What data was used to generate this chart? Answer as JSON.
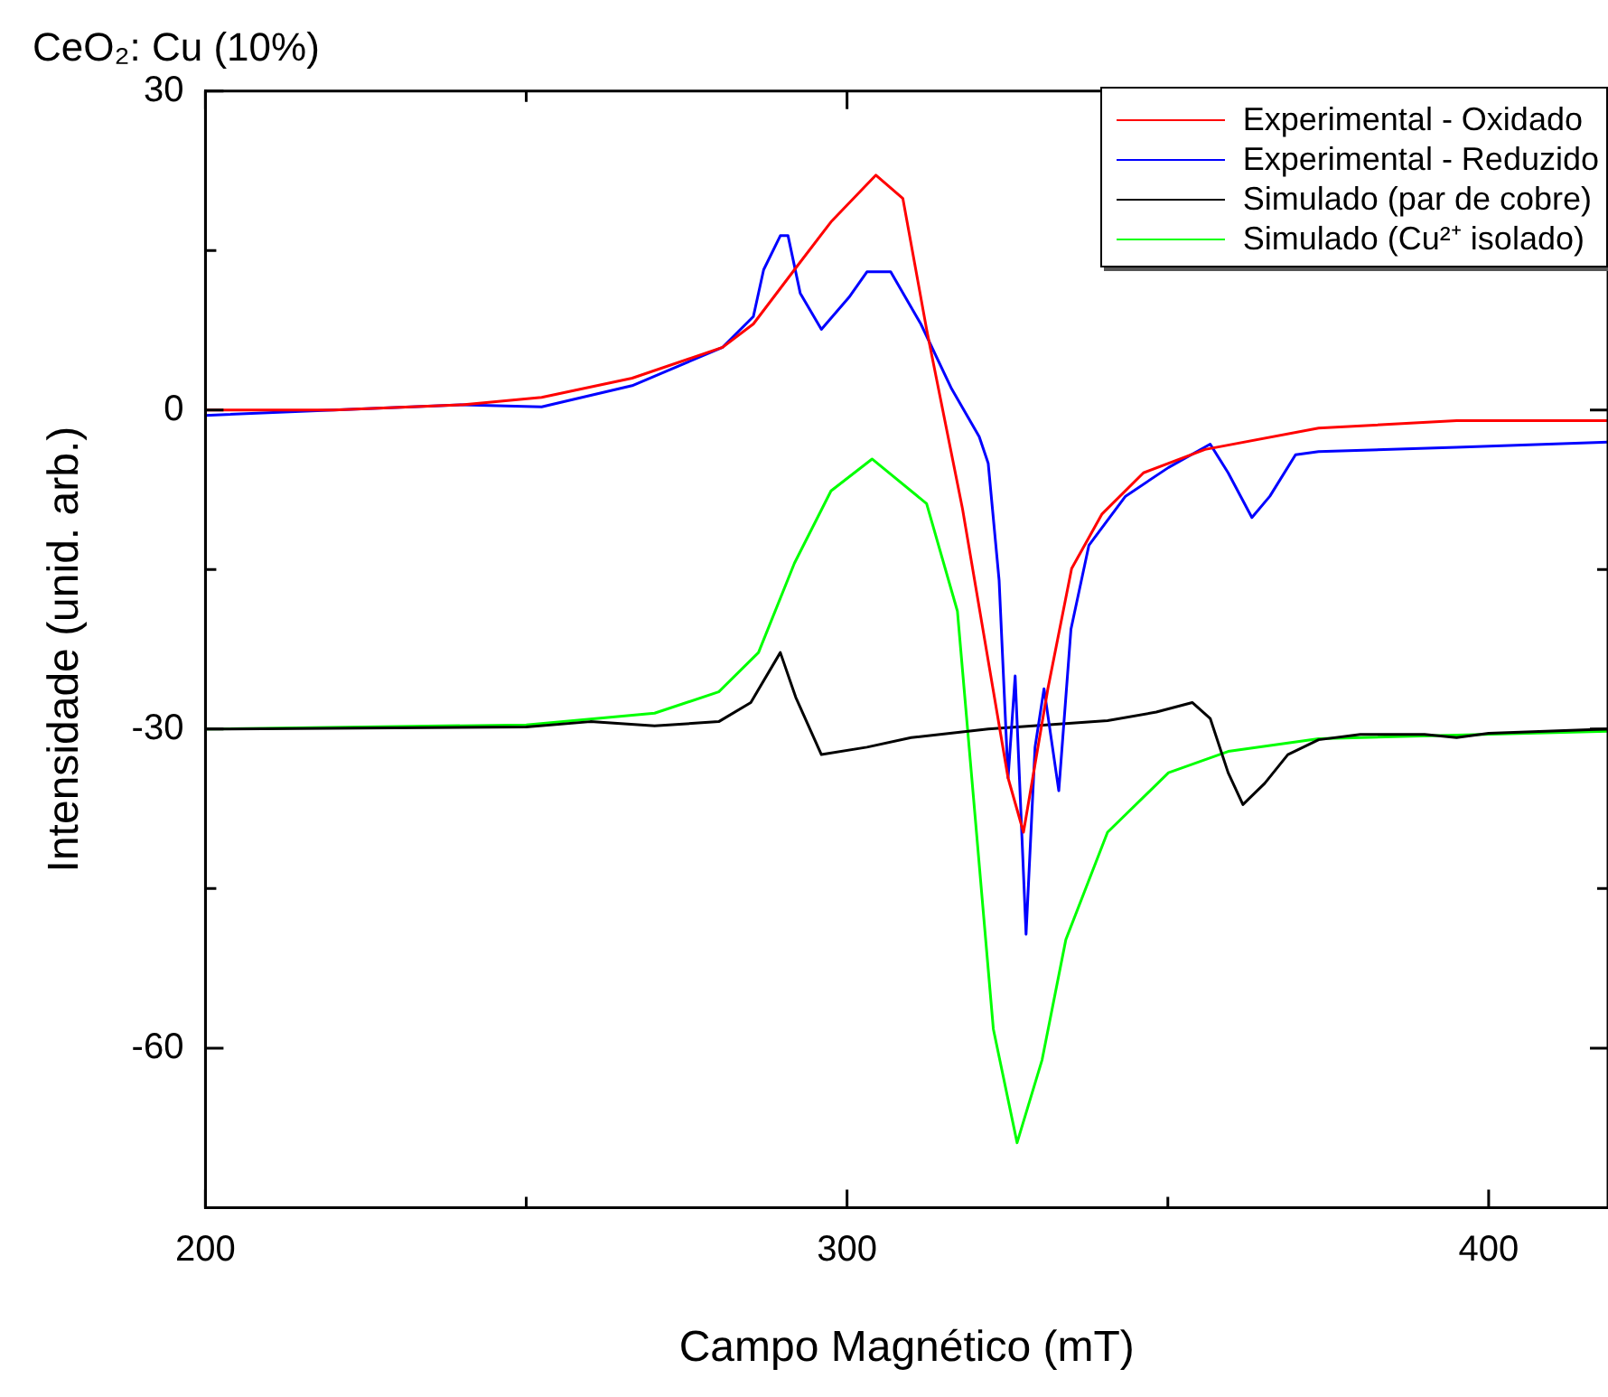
{
  "chart_data": {
    "type": "line",
    "title": "CeO₂: Cu (10%)",
    "xlabel": "Campo Magnético (mT)",
    "ylabel": "Intensidade (unid. arb.)",
    "xlim": [
      200,
      418.6
    ],
    "ylim": [
      -75,
      30
    ],
    "xticks": [
      200,
      {
        "value": 250,
        "label": null
      },
      300,
      {
        "value": 350,
        "label": null
      },
      400
    ],
    "yticks": [
      30,
      {
        "value": 15,
        "label": null
      },
      0,
      {
        "value": -15,
        "label": null
      },
      -30,
      {
        "value": -45,
        "label": null
      },
      -60
    ],
    "grid": false,
    "legend": "top right",
    "marker": "none",
    "line_style": "solid",
    "series": [
      {
        "name": "Experimental - Oxidado",
        "color": "#ff0000",
        "x": [
          200,
          220,
          240,
          252.4,
          266.5,
          280.6,
          285.4,
          291.8,
          297.5,
          304.5,
          308.7,
          312.4,
          318,
          325.1,
          327.5,
          331.3,
          335,
          339.7,
          346.2,
          355.8,
          373.5,
          395,
          418.6
        ],
        "values": [
          0,
          0,
          0.5,
          1.2,
          3,
          5.9,
          8.1,
          13.2,
          17.7,
          22.1,
          19.9,
          7.6,
          -9.3,
          -34.6,
          -39.7,
          -26.2,
          -14.9,
          -9.8,
          -5.9,
          -3.7,
          -1.7,
          -1,
          -1
        ]
      },
      {
        "name": "Experimental - Reduzido",
        "color": "#0000ff",
        "x": [
          200,
          220,
          240,
          252.4,
          266.5,
          280.6,
          285.4,
          287,
          289.6,
          290.8,
          292.7,
          296,
          300.3,
          303.1,
          306.8,
          311.5,
          316.3,
          320.6,
          322,
          323.7,
          325.1,
          326.2,
          327.9,
          329.3,
          330.7,
          333,
          334.9,
          337.7,
          343.4,
          350.1,
          356.6,
          359.4,
          363.1,
          365.9,
          369.9,
          373.5,
          395,
          418.6
        ],
        "values": [
          -0.5,
          0,
          0.5,
          0.3,
          2.3,
          5.9,
          8.8,
          13.2,
          16.4,
          16.4,
          11,
          7.6,
          10.6,
          13,
          13,
          8.1,
          2,
          -2.5,
          -5,
          -16,
          -34.6,
          -25,
          -49.3,
          -31.7,
          -26.2,
          -35.8,
          -20.6,
          -12.7,
          -8.1,
          -5.4,
          -3.2,
          -5.9,
          -10.1,
          -8.1,
          -4.2,
          -3.9,
          -3.5,
          -3
        ]
      },
      {
        "name": "Simulado (par de cobre)",
        "color": "#000000",
        "x": [
          200,
          250,
          260,
          270,
          280,
          285,
          289.6,
          292,
          296,
          303.1,
          310,
          322,
          340.6,
          348.2,
          353.8,
          356.6,
          359.4,
          361.7,
          365.1,
          368.7,
          373.5,
          380,
          390,
          395,
          400,
          418.6
        ],
        "values": [
          -30,
          -29.8,
          -29.3,
          -29.7,
          -29.3,
          -27.5,
          -22.8,
          -27,
          -32.4,
          -31.7,
          -30.8,
          -30,
          -29.2,
          -28.4,
          -27.5,
          -29,
          -34.1,
          -37.1,
          -35.1,
          -32.4,
          -31,
          -30.5,
          -30.5,
          -30.8,
          -30.4,
          -30
        ]
      },
      {
        "name": "Simulado (Cu²⁺ isolado)",
        "color": "#00ff00",
        "x": [
          200,
          250,
          270,
          280,
          286.2,
          291.8,
          297.5,
          303.9,
          312.4,
          317.2,
          320,
          322.8,
          326.5,
          330.4,
          334.1,
          340.6,
          350.1,
          359.4,
          373.5,
          418.6
        ],
        "values": [
          -30,
          -29.6,
          -28.5,
          -26.5,
          -22.8,
          -14.4,
          -7.6,
          -4.6,
          -8.8,
          -18.9,
          -38.5,
          -58.2,
          -68.9,
          -61.1,
          -49.8,
          -39.7,
          -34.1,
          -32.1,
          -30.9,
          -30.2
        ]
      }
    ]
  }
}
